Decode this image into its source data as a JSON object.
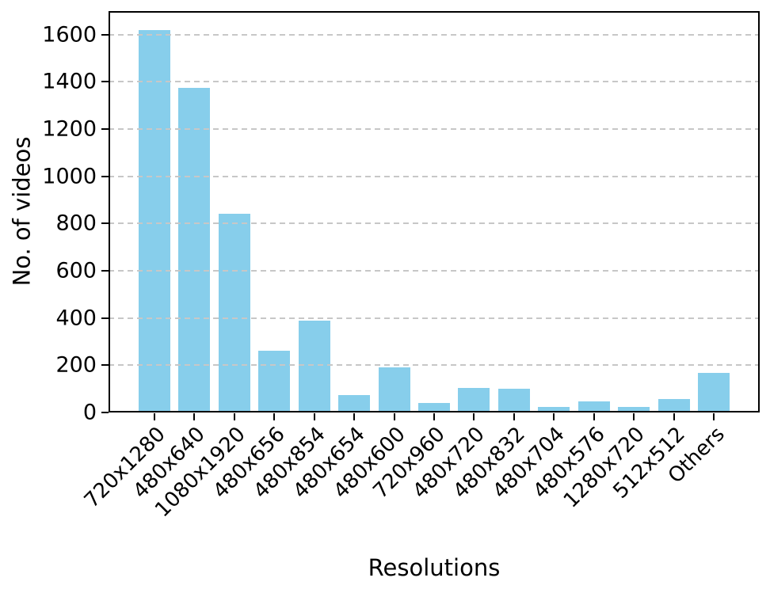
{
  "chart_data": {
    "type": "bar",
    "title": "",
    "xlabel": "Resolutions",
    "ylabel": "No. of videos",
    "categories": [
      "720x1280",
      "480x640",
      "1080x1920",
      "480x656",
      "480x854",
      "480x654",
      "480x600",
      "720x960",
      "480x720",
      "480x832",
      "480x704",
      "480x576",
      "1280x720",
      "512x512",
      "Others"
    ],
    "values": [
      1620,
      1375,
      840,
      260,
      390,
      75,
      190,
      40,
      105,
      100,
      25,
      48,
      25,
      57,
      168
    ],
    "yticks": [
      0,
      200,
      400,
      600,
      800,
      1000,
      1200,
      1400,
      1600
    ],
    "ylim": [
      0,
      1700
    ],
    "bar_color": "#87CEEB",
    "grid": {
      "axis": "y",
      "style": "dashed",
      "color": "#c7c7c7",
      "above_bars": true
    },
    "legend_position": "none"
  }
}
